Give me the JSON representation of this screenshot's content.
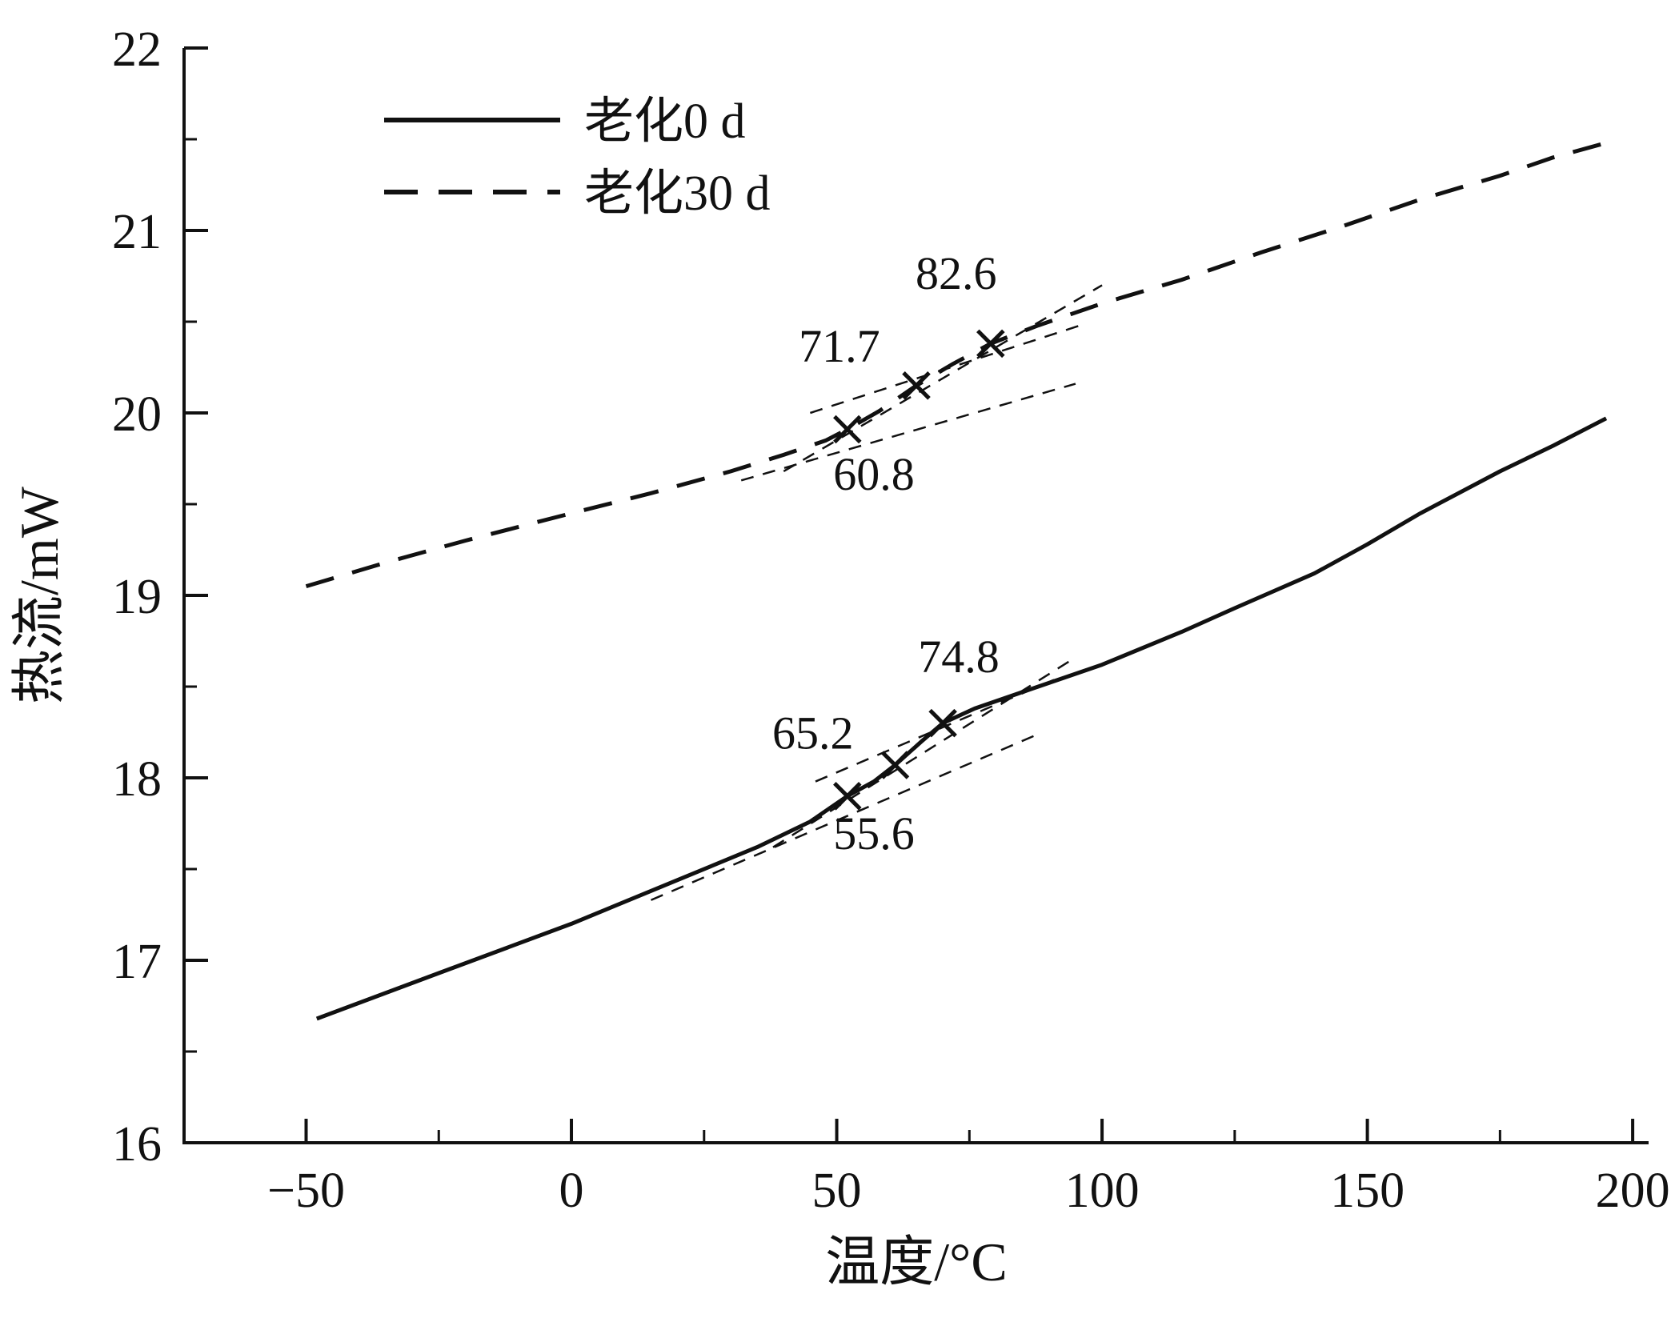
{
  "chart_data": {
    "type": "line",
    "xlabel": "温度/°C",
    "ylabel": "热流/mW",
    "xlim": [
      -73,
      203
    ],
    "ylim": [
      16,
      22
    ],
    "x_ticks": [
      -50,
      0,
      50,
      100,
      150,
      200
    ],
    "y_ticks": [
      16,
      17,
      18,
      19,
      20,
      21,
      22
    ],
    "x_minor_step": 25,
    "y_minor_step": 0.5,
    "grid": false,
    "axis_color": "#111111",
    "legend": {
      "position": "top-left-inside"
    },
    "series": [
      {
        "name": "老化0 d",
        "style": "solid",
        "color": "#111111",
        "points": [
          [
            -48,
            16.68
          ],
          [
            -25,
            16.93
          ],
          [
            0,
            17.2
          ],
          [
            20,
            17.44
          ],
          [
            35,
            17.62
          ],
          [
            45,
            17.76
          ],
          [
            52,
            17.9
          ],
          [
            57,
            17.98
          ],
          [
            61,
            18.07
          ],
          [
            66,
            18.2
          ],
          [
            70,
            18.3
          ],
          [
            76,
            18.38
          ],
          [
            85,
            18.47
          ],
          [
            100,
            18.62
          ],
          [
            115,
            18.8
          ],
          [
            125,
            18.93
          ],
          [
            140,
            19.12
          ],
          [
            150,
            19.28
          ],
          [
            160,
            19.45
          ],
          [
            175,
            19.68
          ],
          [
            185,
            19.82
          ],
          [
            195,
            19.97
          ]
        ]
      },
      {
        "name": "老化30 d",
        "style": "dashed",
        "color": "#111111",
        "points": [
          [
            -50,
            19.05
          ],
          [
            -35,
            19.18
          ],
          [
            -20,
            19.3
          ],
          [
            0,
            19.45
          ],
          [
            15,
            19.56
          ],
          [
            30,
            19.68
          ],
          [
            40,
            19.77
          ],
          [
            48,
            19.85
          ],
          [
            52,
            19.91
          ],
          [
            58,
            20.01
          ],
          [
            65,
            20.15
          ],
          [
            72,
            20.27
          ],
          [
            79,
            20.38
          ],
          [
            88,
            20.48
          ],
          [
            100,
            20.6
          ],
          [
            115,
            20.73
          ],
          [
            130,
            20.88
          ],
          [
            145,
            21.02
          ],
          [
            160,
            21.17
          ],
          [
            175,
            21.3
          ],
          [
            185,
            21.4
          ],
          [
            195,
            21.48
          ]
        ]
      }
    ],
    "tangent_lines": [
      {
        "x1": 32,
        "y1": 19.63,
        "x2": 95,
        "y2": 20.16
      },
      {
        "x1": 40,
        "y1": 19.68,
        "x2": 100,
        "y2": 20.7
      },
      {
        "x1": 45,
        "y1": 20.0,
        "x2": 97,
        "y2": 20.49
      },
      {
        "x1": 15,
        "y1": 17.33,
        "x2": 88,
        "y2": 18.24
      },
      {
        "x1": 38,
        "y1": 17.62,
        "x2": 95,
        "y2": 18.66
      },
      {
        "x1": 46,
        "y1": 17.98,
        "x2": 92,
        "y2": 18.55
      }
    ],
    "markers": [
      {
        "x": 52,
        "y": 19.91,
        "label": "60.8"
      },
      {
        "x": 65,
        "y": 20.15,
        "label": "71.7"
      },
      {
        "x": 79,
        "y": 20.38,
        "label": "82.6"
      },
      {
        "x": 52,
        "y": 17.9,
        "label": "55.6"
      },
      {
        "x": 61,
        "y": 18.07,
        "label": "65.2"
      },
      {
        "x": 70,
        "y": 18.3,
        "label": "74.8"
      }
    ],
    "annotations": [
      {
        "text": "82.6",
        "x": 72.5,
        "y": 20.68
      },
      {
        "text": "71.7",
        "x": 50.5,
        "y": 20.28
      },
      {
        "text": "60.8",
        "x": 57.0,
        "y": 19.58
      },
      {
        "text": "74.8",
        "x": 73.0,
        "y": 18.58
      },
      {
        "text": "65.2",
        "x": 45.5,
        "y": 18.16
      },
      {
        "text": "55.6",
        "x": 57.0,
        "y": 17.61
      }
    ]
  }
}
